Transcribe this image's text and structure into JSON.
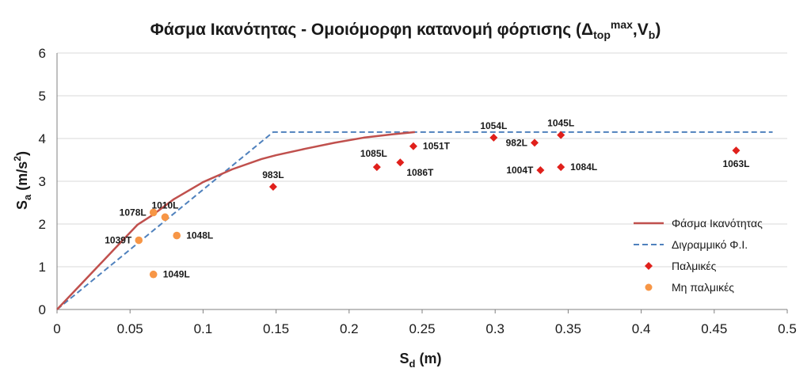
{
  "chart_data": {
    "type": "scatter",
    "title": {
      "main": "Φάσμα Ικανότητας - Ομοιόμορφη κατανομή φόρτισης (Δ",
      "sub1": "top",
      "sup1": "max",
      "mid": ",V",
      "sub2": "b",
      "end": ")"
    },
    "xlabel": {
      "main": "S",
      "sub": "d",
      "rest": " (m)"
    },
    "ylabel": {
      "main": "S",
      "sub": "a",
      "rest": " (m/s",
      "sup": "2",
      "end": ")"
    },
    "xlim": [
      0,
      0.5
    ],
    "ylim": [
      0,
      6
    ],
    "xticks": [
      0,
      0.05,
      0.1,
      0.15,
      0.2,
      0.25,
      0.3,
      0.35,
      0.4,
      0.45,
      0.5
    ],
    "xtick_labels": [
      "0",
      "0.05",
      "0.1",
      "0.15",
      "0.2",
      "0.25",
      "0.3",
      "0.35",
      "0.4",
      "0.45",
      "0.5"
    ],
    "yticks": [
      0,
      1,
      2,
      3,
      4,
      5,
      6
    ],
    "ytick_labels": [
      "0",
      "1",
      "2",
      "3",
      "4",
      "5",
      "6"
    ],
    "grid": "horizontal",
    "legend_position": "bottom-right",
    "colors": {
      "capacity": "#c0504d",
      "bilinear": "#4f81bd",
      "pulse": "#e0201b",
      "nonpulse": "#f79646",
      "grid": "#d9d9d9",
      "axis": "#808080"
    },
    "series": [
      {
        "name": "Φάσμα Ικανότητας",
        "kind": "line",
        "points": [
          [
            0,
            0
          ],
          [
            0.02,
            0.72
          ],
          [
            0.04,
            1.44
          ],
          [
            0.055,
            1.98
          ],
          [
            0.065,
            2.2
          ],
          [
            0.08,
            2.58
          ],
          [
            0.1,
            2.98
          ],
          [
            0.12,
            3.28
          ],
          [
            0.14,
            3.52
          ],
          [
            0.15,
            3.61
          ],
          [
            0.17,
            3.76
          ],
          [
            0.19,
            3.9
          ],
          [
            0.21,
            4.02
          ],
          [
            0.23,
            4.1
          ],
          [
            0.245,
            4.15
          ]
        ]
      },
      {
        "name": "Διγραμμικό Φ.Ι.",
        "kind": "dashed",
        "points": [
          [
            0,
            0
          ],
          [
            0.148,
            4.15
          ],
          [
            0.49,
            4.15
          ]
        ]
      },
      {
        "name": "Παλμικές",
        "kind": "diamond",
        "points": [
          {
            "x": 0.148,
            "y": 2.87,
            "label": "983L",
            "pos": "above"
          },
          {
            "x": 0.219,
            "y": 3.33,
            "label": "1085L",
            "pos": "aboveleft"
          },
          {
            "x": 0.235,
            "y": 3.44,
            "label": "1086T",
            "pos": "belowright"
          },
          {
            "x": 0.244,
            "y": 3.82,
            "label": "1051T",
            "pos": "right"
          },
          {
            "x": 0.299,
            "y": 4.02,
            "label": "1054L",
            "pos": "above"
          },
          {
            "x": 0.327,
            "y": 3.9,
            "label": "982L",
            "pos": "left"
          },
          {
            "x": 0.331,
            "y": 3.26,
            "label": "1004T",
            "pos": "left"
          },
          {
            "x": 0.345,
            "y": 4.08,
            "label": "1045L",
            "pos": "above"
          },
          {
            "x": 0.345,
            "y": 3.33,
            "label": "1084L",
            "pos": "right"
          },
          {
            "x": 0.465,
            "y": 3.72,
            "label": "1063L",
            "pos": "below"
          }
        ]
      },
      {
        "name": "Μη παλμικές",
        "kind": "circle",
        "points": [
          {
            "x": 0.066,
            "y": 2.27,
            "label": "1078L",
            "pos": "left"
          },
          {
            "x": 0.074,
            "y": 2.16,
            "label": "1010L",
            "pos": "above"
          },
          {
            "x": 0.056,
            "y": 1.62,
            "label": "1039T",
            "pos": "left"
          },
          {
            "x": 0.082,
            "y": 1.73,
            "label": "1048L",
            "pos": "right"
          },
          {
            "x": 0.066,
            "y": 0.82,
            "label": "1049L",
            "pos": "right"
          }
        ]
      }
    ]
  }
}
